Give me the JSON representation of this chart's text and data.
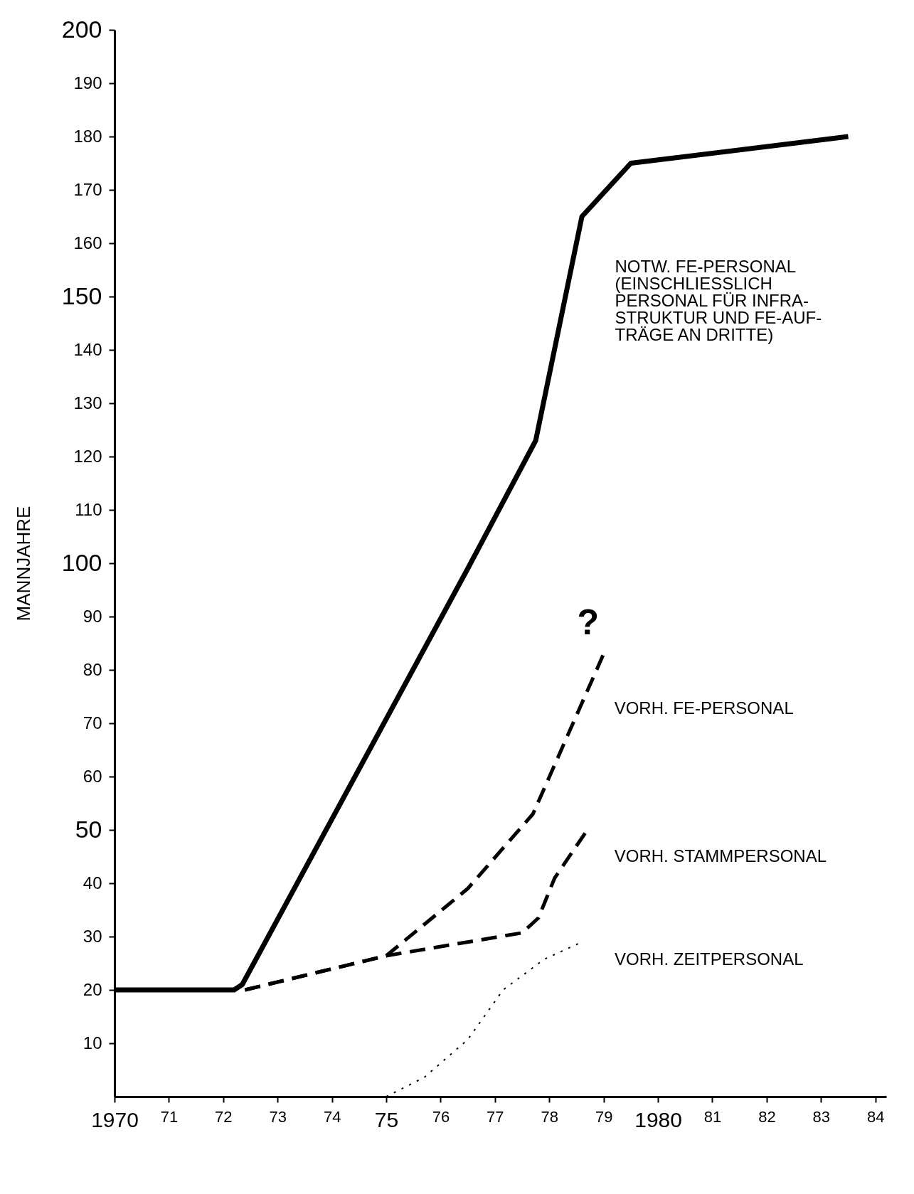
{
  "chart_data": {
    "type": "line",
    "ylabel": "MANNJAHRE",
    "xlim": [
      1970,
      1984.2
    ],
    "xticks": [
      {
        "value": 1970,
        "label": "1970"
      },
      {
        "value": 1971,
        "label": "71"
      },
      {
        "value": 1972,
        "label": "72"
      },
      {
        "value": 1973,
        "label": "73"
      },
      {
        "value": 1974,
        "label": "74"
      },
      {
        "value": 1975,
        "label": "75"
      },
      {
        "value": 1976,
        "label": "76"
      },
      {
        "value": 1977,
        "label": "77"
      },
      {
        "value": 1978,
        "label": "78"
      },
      {
        "value": 1979,
        "label": "79"
      },
      {
        "value": 1980,
        "label": "1980"
      },
      {
        "value": 1981,
        "label": "81"
      },
      {
        "value": 1982,
        "label": "82"
      },
      {
        "value": 1983,
        "label": "83"
      },
      {
        "value": 1984,
        "label": "84"
      }
    ],
    "ylim": [
      0,
      200
    ],
    "yticks": [
      10,
      20,
      30,
      40,
      50,
      60,
      70,
      80,
      90,
      100,
      110,
      120,
      130,
      140,
      150,
      160,
      170,
      180,
      190,
      200
    ],
    "grid": false,
    "series": [
      {
        "name": "NOTW. FE-PERSONAL\n(EINSCHLIESSLICH\nPERSONAL FÜR INFRA-\nSTRUKTUR UND FE-AUF-\nTRÄGE AN DRITTE)",
        "color": "#000000",
        "line_style": "solid",
        "x": [
          1970,
          1972.2,
          1972.35,
          1976.5,
          1977.75,
          1978.6,
          1979.5,
          1983.5
        ],
        "values": [
          20,
          20,
          21,
          99,
          123,
          165,
          175,
          180
        ]
      },
      {
        "name": "VORH. FE-PERSONAL",
        "color": "#000000",
        "line_style": "dashed",
        "x": [
          1972.4,
          1975,
          1976.5,
          1977.7,
          1979
        ],
        "values": [
          20,
          26.4,
          39,
          53,
          83
        ]
      },
      {
        "name": "VORH. STAMMPERSONAL",
        "color": "#000000",
        "line_style": "dashed",
        "x": [
          1972.4,
          1975,
          1977.5,
          1977.8,
          1978.1,
          1978.7
        ],
        "values": [
          20,
          26.4,
          30.7,
          33.5,
          41,
          50
        ]
      },
      {
        "name": "VORH. ZEITPERSONAL",
        "color": "#000000",
        "line_style": "dotted",
        "x": [
          1975,
          1975.7,
          1976.5,
          1977.15,
          1977.9,
          1978.6
        ],
        "values": [
          0,
          3.6,
          10.7,
          20,
          25.7,
          29
        ]
      }
    ],
    "annotations": [
      "?"
    ]
  }
}
